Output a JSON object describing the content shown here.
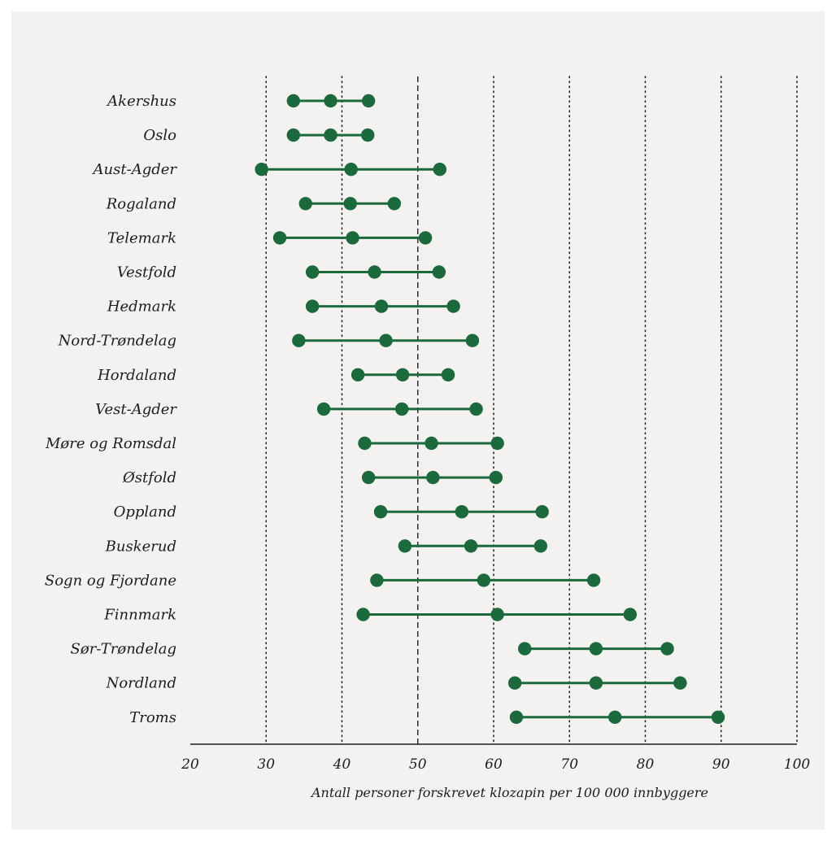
{
  "chart_data": {
    "type": "dot-range",
    "xlabel": "Antall personer forskrevet klozapin per 100 000 innbyggere",
    "xlim": [
      20,
      100
    ],
    "xticks": [
      20,
      30,
      40,
      50,
      60,
      70,
      80,
      90,
      100
    ],
    "xtick_labels": [
      "20",
      "30",
      "40",
      "50",
      "60",
      "70",
      "80",
      "90",
      "100"
    ],
    "reference_line": 50,
    "grid": "vertical dotted",
    "colors": {
      "series": "#1b6a3c",
      "text": "#1d1d1d",
      "grid": "#222222",
      "background": "#f3f2f0"
    },
    "categories": [
      "Akershus",
      "Oslo",
      "Aust-Agder",
      "Rogaland",
      "Telemark",
      "Vestfold",
      "Hedmark",
      "Nord-Trøndelag",
      "Hordaland",
      "Vest-Agder",
      "Møre og Romsdal",
      "Østfold",
      "Oppland",
      "Buskerud",
      "Sogn og Fjordane",
      "Finnmark",
      "Sør-Trøndelag",
      "Nordland",
      "Troms"
    ],
    "series": [
      {
        "values": [
          33.6,
          33.6,
          29.4,
          35.2,
          31.8,
          36.1,
          36.1,
          34.3,
          42.1,
          37.6,
          43.0,
          43.5,
          45.1,
          48.3,
          44.6,
          42.8,
          64.1,
          62.8,
          63.0
        ]
      },
      {
        "values": [
          38.5,
          38.5,
          41.2,
          41.1,
          41.4,
          44.3,
          45.2,
          45.8,
          48.0,
          47.9,
          51.8,
          52.0,
          55.8,
          57.0,
          58.7,
          60.5,
          73.5,
          73.5,
          76.0
        ]
      },
      {
        "values": [
          43.5,
          43.4,
          52.9,
          46.9,
          51.0,
          52.8,
          54.7,
          57.2,
          54.0,
          57.7,
          60.5,
          60.3,
          66.4,
          66.2,
          73.2,
          78.0,
          82.9,
          84.6,
          89.6
        ]
      }
    ]
  }
}
